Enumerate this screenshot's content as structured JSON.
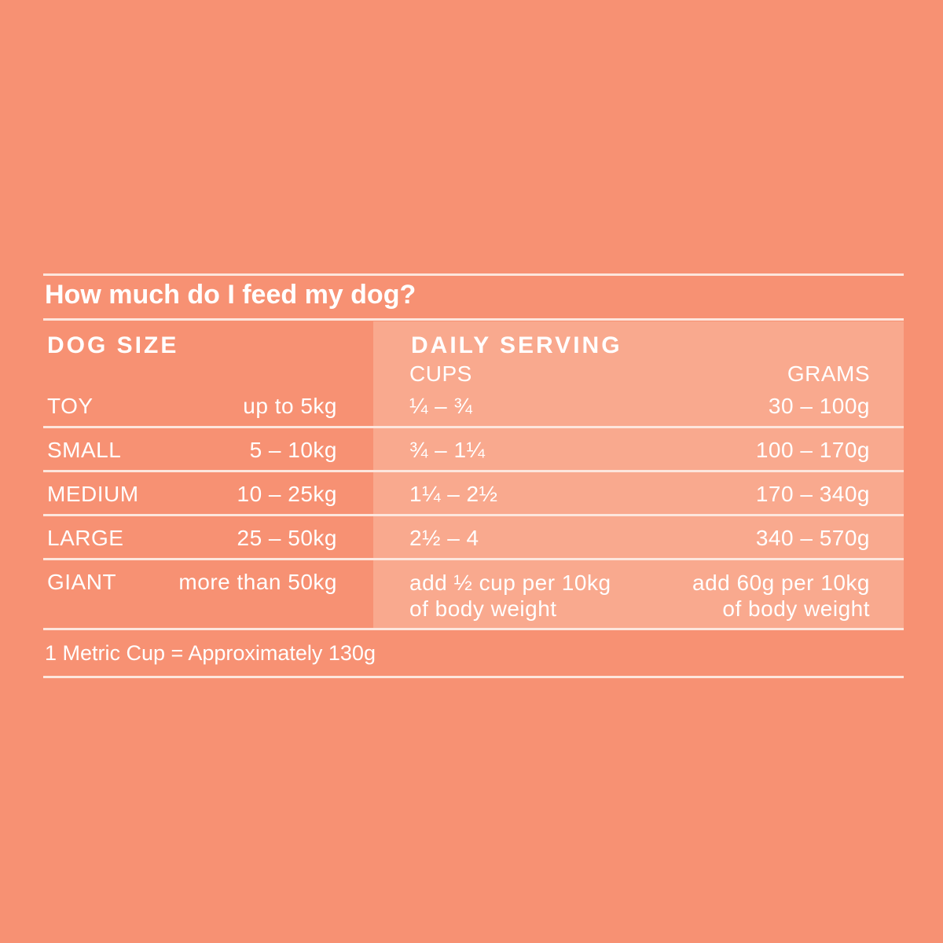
{
  "title": "How much do I feed my dog?",
  "headers": {
    "dog_size": "DOG SIZE",
    "daily_serving": "DAILY SERVING",
    "cups": "CUPS",
    "grams": "GRAMS"
  },
  "rows": [
    {
      "size": "TOY",
      "weight": "up to 5kg",
      "cups": "¼  –  ¾",
      "grams": "30  –  100g"
    },
    {
      "size": "SMALL",
      "weight": "5  –  10kg",
      "cups": "¾  –  1¼",
      "grams": "100  –  170g"
    },
    {
      "size": "MEDIUM",
      "weight": "10  –  25kg",
      "cups": "1¼ –  2½",
      "grams": "170  –  340g"
    },
    {
      "size": "LARGE",
      "weight": "25  –  50kg",
      "cups": "2½ –  4",
      "grams": "340  –  570g"
    },
    {
      "size": "GIANT",
      "weight": "more than 50kg",
      "cups_line1": "add ½ cup per 10kg",
      "cups_line2": "of body weight",
      "grams_line1": "add 60g per 10kg",
      "grams_line2": "of body weight"
    }
  ],
  "footnote": "1 Metric Cup = Approximately 130g",
  "colors": {
    "background": "#f79173",
    "serving_panel": "#f9a98e",
    "rules": "#fde6dd",
    "text": "#ffffff"
  }
}
